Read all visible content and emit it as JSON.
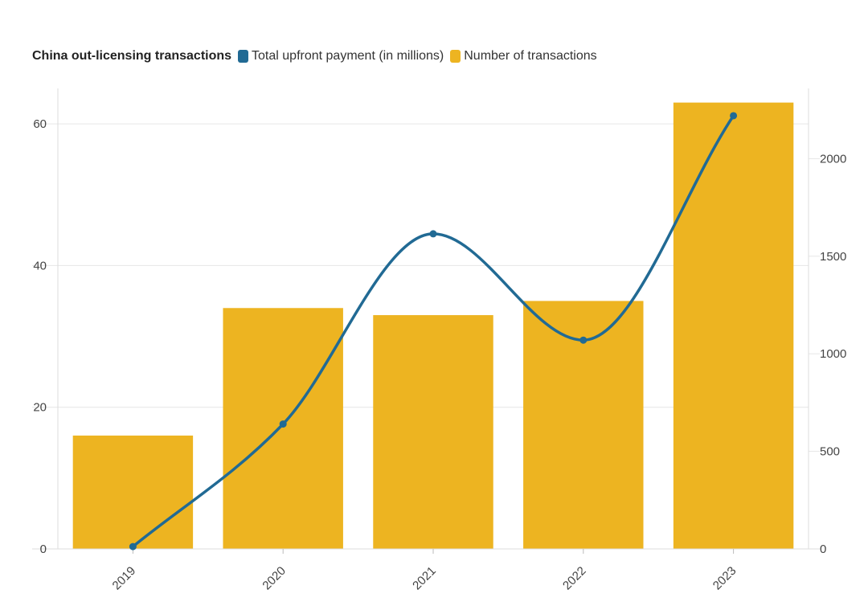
{
  "chart_data": {
    "type": "bar",
    "title": "China out-licensing transactions",
    "categories": [
      "2019",
      "2020",
      "2021",
      "2022",
      "2023"
    ],
    "series": [
      {
        "name": "Number of transactions",
        "type": "bar",
        "axis": "left",
        "color": "#EDB421",
        "values": [
          16,
          34,
          33,
          35,
          63
        ]
      },
      {
        "name": "Total upfront payment (in millions)",
        "type": "line",
        "axis": "right",
        "color": "#216A94",
        "values": [
          12,
          640,
          1615,
          1070,
          2220
        ]
      }
    ],
    "y_left": {
      "min": 0,
      "max": 65,
      "ticks": [
        0,
        20,
        40,
        60
      ]
    },
    "y_right": {
      "min": 0,
      "max": 2360,
      "ticks": [
        0,
        500,
        1000,
        1500,
        2000
      ]
    },
    "grid": true,
    "legend_position": "top-left"
  }
}
